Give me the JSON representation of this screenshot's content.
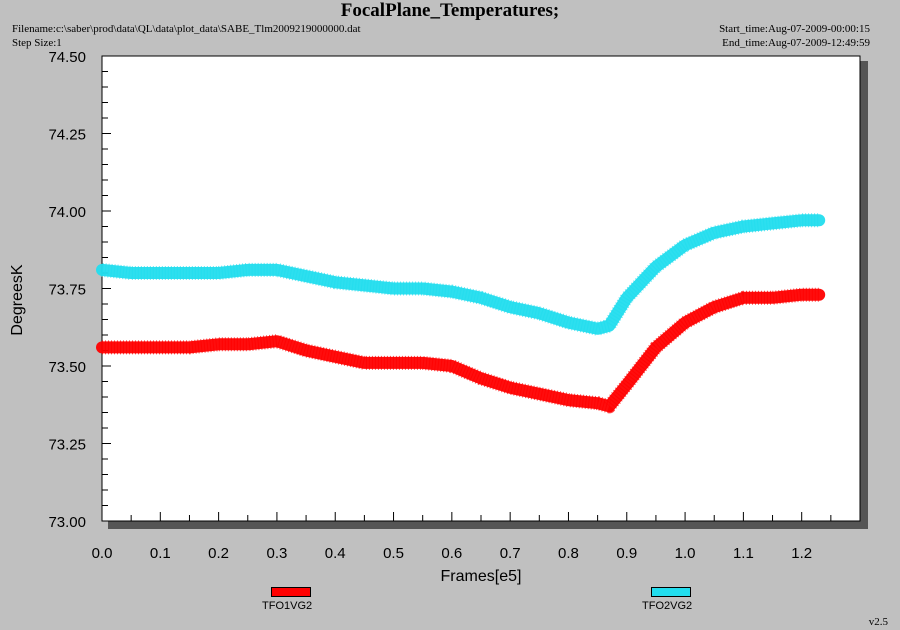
{
  "header": {
    "title": "FocalPlane_Temperatures;",
    "filename": "Filename:c:\\saber\\prod\\data\\QL\\data\\plot_data\\SABE_Tlm2009219000000.dat",
    "step_size": "Step Size:1",
    "start_time": "Start_time:Aug-07-2009-00:00:15",
    "end_time": "End_time:Aug-07-2009-12:49:59"
  },
  "version": "v2.5",
  "chart_data": {
    "type": "line",
    "xlabel": "Frames[e5]",
    "ylabel": "DegreesK",
    "xlim": [
      0.0,
      1.3
    ],
    "ylim": [
      73.0,
      74.5
    ],
    "x_ticks": [
      "0.0",
      "0.1",
      "0.2",
      "0.3",
      "0.4",
      "0.5",
      "0.6",
      "0.7",
      "0.8",
      "0.9",
      "1.0",
      "1.1",
      "1.2"
    ],
    "y_ticks": [
      "73.00",
      "73.25",
      "73.50",
      "73.75",
      "74.00",
      "74.25",
      "74.50"
    ],
    "series": [
      {
        "name": "TFO1VG2",
        "color": "#ff0000",
        "x": [
          0.0,
          0.05,
          0.1,
          0.15,
          0.2,
          0.25,
          0.3,
          0.35,
          0.4,
          0.45,
          0.5,
          0.55,
          0.6,
          0.65,
          0.7,
          0.75,
          0.8,
          0.85,
          0.87,
          0.9,
          0.95,
          1.0,
          1.05,
          1.1,
          1.15,
          1.2,
          1.23
        ],
        "y": [
          73.56,
          73.56,
          73.56,
          73.56,
          73.57,
          73.57,
          73.58,
          73.55,
          73.53,
          73.51,
          73.51,
          73.51,
          73.5,
          73.46,
          73.43,
          73.41,
          73.39,
          73.38,
          73.37,
          73.44,
          73.56,
          73.64,
          73.69,
          73.72,
          73.72,
          73.73,
          73.73
        ]
      },
      {
        "name": "TFO2VG2",
        "color": "#22ddee",
        "x": [
          0.0,
          0.05,
          0.1,
          0.15,
          0.2,
          0.25,
          0.3,
          0.35,
          0.4,
          0.45,
          0.5,
          0.55,
          0.6,
          0.65,
          0.7,
          0.75,
          0.8,
          0.85,
          0.87,
          0.9,
          0.95,
          1.0,
          1.05,
          1.1,
          1.15,
          1.2,
          1.23
        ],
        "y": [
          73.81,
          73.8,
          73.8,
          73.8,
          73.8,
          73.81,
          73.81,
          73.79,
          73.77,
          73.76,
          73.75,
          73.75,
          73.74,
          73.72,
          73.69,
          73.67,
          73.64,
          73.62,
          73.63,
          73.72,
          73.82,
          73.89,
          73.93,
          73.95,
          73.96,
          73.97,
          73.97
        ]
      }
    ],
    "grid": false,
    "legend": "bottom"
  }
}
